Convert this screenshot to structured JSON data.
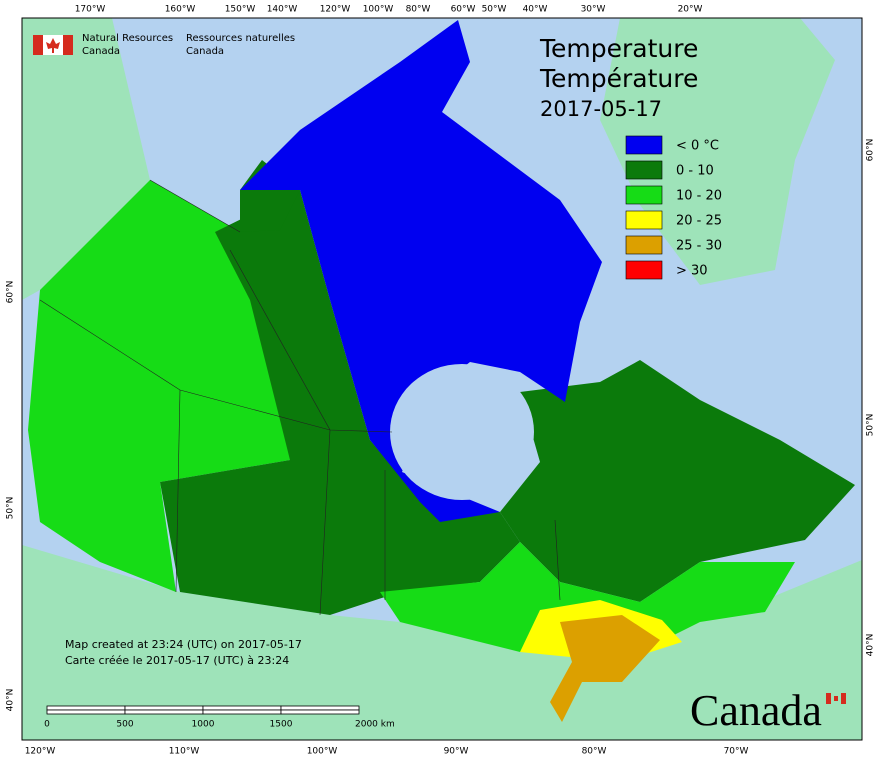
{
  "header": {
    "department_en": [
      "Natural Resources",
      "Canada"
    ],
    "department_fr": [
      "Ressources naturelles",
      "Canada"
    ]
  },
  "title": {
    "line1": "Temperature",
    "line2": "Température",
    "date": "2017-05-17"
  },
  "legend": [
    {
      "label": "< 0 °C",
      "color": "#0000f0"
    },
    {
      "label": "0 - 10",
      "color": "#0b7a0b"
    },
    {
      "label": "10 - 20",
      "color": "#16dc16"
    },
    {
      "label": "20 - 25",
      "color": "#ffff00"
    },
    {
      "label": "25 - 30",
      "color": "#dca000"
    },
    {
      "label": "> 30",
      "color": "#ff0000"
    }
  ],
  "axes": {
    "top": [
      "170°W",
      "160°W",
      "150°W",
      "140°W",
      "120°W",
      "100°W",
      "80°W",
      "60°W",
      "50°W",
      "40°W",
      "30°W",
      "20°W"
    ],
    "bottom": [
      "120°W",
      "110°W",
      "100°W",
      "90°W",
      "80°W",
      "70°W"
    ],
    "left": [
      "60°N",
      "50°N",
      "40°N"
    ],
    "right": [
      "60°N",
      "50°N",
      "40°N"
    ]
  },
  "footer": {
    "created_en": "Map created at 23:24 (UTC) on 2017-05-17",
    "created_fr": "Carte créée le 2017-05-17 (UTC) à 23:24"
  },
  "scale_bar": [
    "0",
    "500",
    "1000",
    "1500",
    "2000 km"
  ],
  "wordmark": "Canada"
}
